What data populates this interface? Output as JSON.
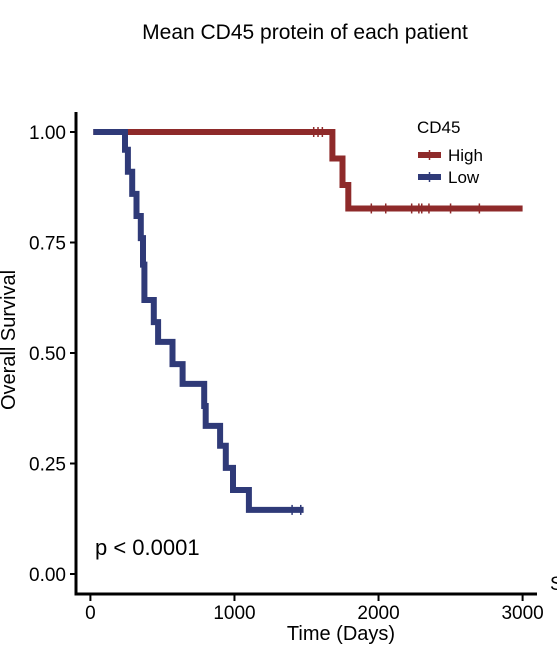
{
  "chart_data": {
    "type": "line",
    "subtype": "kaplan-meier",
    "title": "Mean CD45 protein of each patient",
    "xlabel": "Time (Days)",
    "ylabel": "Overall Survival",
    "xlim": [
      -100,
      3100
    ],
    "ylim": [
      0,
      1
    ],
    "x_ticks": [
      0,
      1000,
      2000,
      3000
    ],
    "x_tick_labels": [
      "0",
      "1000",
      "2000",
      "3000"
    ],
    "y_ticks": [
      0,
      0.25,
      0.5,
      0.75,
      1
    ],
    "y_tick_labels": [
      "0.00",
      "0.25",
      "0.50",
      "0.75",
      "1.00"
    ],
    "annotation": "p < 0.0001",
    "cutoff_label": "S",
    "legend": {
      "title": "CD45",
      "position": "top-right"
    },
    "grid": false,
    "series": [
      {
        "name": "High",
        "color": "#8e2a2a",
        "x": [
          20,
          1680,
          1680,
          1750,
          1750,
          1790,
          1790,
          3000
        ],
        "y": [
          1.0,
          1.0,
          0.94,
          0.94,
          0.88,
          0.88,
          0.827,
          0.827
        ],
        "censor_x": [
          1550,
          1580,
          1610,
          1950,
          2050,
          2230,
          2280,
          2300,
          2350,
          2500,
          2700
        ],
        "censor_y": [
          1.0,
          1.0,
          1.0,
          0.827,
          0.827,
          0.827,
          0.827,
          0.827,
          0.827,
          0.827,
          0.827
        ]
      },
      {
        "name": "Low",
        "color": "#2f3a78",
        "x": [
          20,
          240,
          240,
          260,
          260,
          290,
          290,
          320,
          320,
          350,
          350,
          365,
          365,
          375,
          375,
          440,
          440,
          470,
          470,
          570,
          570,
          640,
          640,
          790,
          790,
          800,
          800,
          900,
          900,
          940,
          940,
          990,
          990,
          1100,
          1100,
          1480
        ],
        "y": [
          1.0,
          1.0,
          0.96,
          0.96,
          0.91,
          0.91,
          0.86,
          0.86,
          0.81,
          0.81,
          0.76,
          0.76,
          0.7,
          0.7,
          0.62,
          0.62,
          0.57,
          0.57,
          0.525,
          0.525,
          0.475,
          0.475,
          0.43,
          0.43,
          0.38,
          0.38,
          0.335,
          0.335,
          0.29,
          0.29,
          0.24,
          0.24,
          0.19,
          0.19,
          0.145,
          0.145
        ],
        "censor_x": [
          1400,
          1460
        ],
        "censor_y": [
          0.145,
          0.145
        ]
      }
    ]
  }
}
